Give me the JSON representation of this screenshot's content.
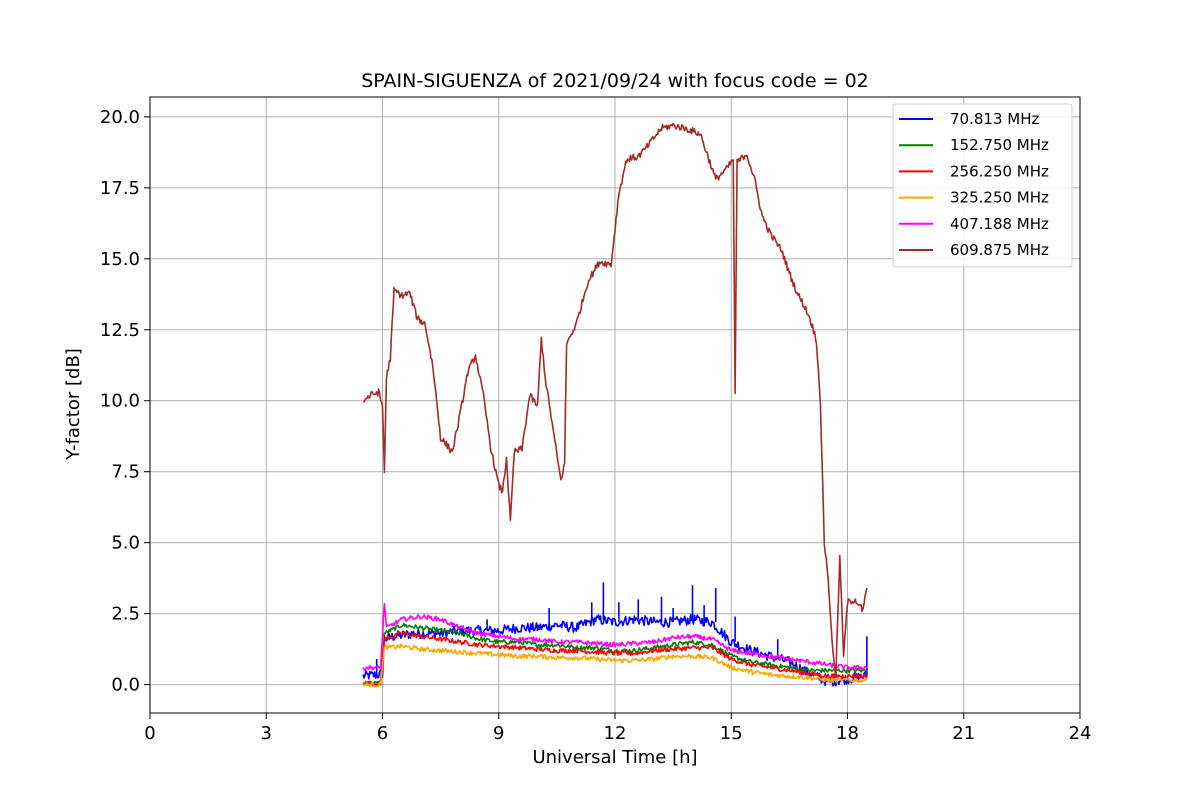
{
  "chart_data": {
    "type": "line",
    "title": "SPAIN-SIGUENZA of 2021/09/24 with focus code = 02",
    "xlabel": "Universal Time [h]",
    "ylabel": "Y-factor [dB]",
    "xlim": [
      0,
      24
    ],
    "ylim": [
      -1.0,
      20.7
    ],
    "xticks": [
      0,
      3,
      6,
      9,
      12,
      15,
      18,
      21,
      24
    ],
    "xtick_labels": [
      "0",
      "3",
      "6",
      "9",
      "12",
      "15",
      "18",
      "21",
      "24"
    ],
    "yticks": [
      0.0,
      2.5,
      5.0,
      7.5,
      10.0,
      12.5,
      15.0,
      17.5,
      20.0
    ],
    "ytick_labels": [
      "0.0",
      "2.5",
      "5.0",
      "7.5",
      "10.0",
      "12.5",
      "15.0",
      "17.5",
      "20.0"
    ],
    "grid": true,
    "legend_position": "top-right",
    "series": [
      {
        "name": " 70.813 MHz",
        "color": "#0000ff",
        "points": [
          [
            5.5,
            0.3
          ],
          [
            5.9,
            0.35
          ],
          [
            6.0,
            0.4
          ],
          [
            6.05,
            1.6
          ],
          [
            6.3,
            1.7
          ],
          [
            6.8,
            1.8
          ],
          [
            7.5,
            1.8
          ],
          [
            8.0,
            1.9
          ],
          [
            8.5,
            1.9
          ],
          [
            9.0,
            1.9
          ],
          [
            9.5,
            2.0
          ],
          [
            10.0,
            2.0
          ],
          [
            10.5,
            2.1
          ],
          [
            11.0,
            2.0
          ],
          [
            11.5,
            2.3
          ],
          [
            12.0,
            2.2
          ],
          [
            12.5,
            2.3
          ],
          [
            13.0,
            2.2
          ],
          [
            13.5,
            2.2
          ],
          [
            14.0,
            2.3
          ],
          [
            14.5,
            2.2
          ],
          [
            15.0,
            1.5
          ],
          [
            15.5,
            1.2
          ],
          [
            16.0,
            1.0
          ],
          [
            16.5,
            0.8
          ],
          [
            17.0,
            0.4
          ],
          [
            17.5,
            0.1
          ],
          [
            18.0,
            0.2
          ],
          [
            18.5,
            0.3
          ]
        ],
        "spikes": [
          [
            5.85,
            0.9
          ],
          [
            8.7,
            2.3
          ],
          [
            10.3,
            2.7
          ],
          [
            11.4,
            2.9
          ],
          [
            11.7,
            3.6
          ],
          [
            12.1,
            2.9
          ],
          [
            12.6,
            3.0
          ],
          [
            13.2,
            3.1
          ],
          [
            13.5,
            2.7
          ],
          [
            14.0,
            3.5
          ],
          [
            14.3,
            2.8
          ],
          [
            14.6,
            3.4
          ],
          [
            15.1,
            2.4
          ],
          [
            16.2,
            1.6
          ],
          [
            18.5,
            1.7
          ]
        ]
      },
      {
        "name": "152.750 MHz",
        "color": "#008000",
        "points": [
          [
            5.5,
            0.05
          ],
          [
            5.95,
            0.05
          ],
          [
            6.05,
            1.8
          ],
          [
            6.5,
            2.1
          ],
          [
            7.0,
            2.0
          ],
          [
            7.5,
            1.9
          ],
          [
            8.0,
            1.8
          ],
          [
            8.5,
            1.6
          ],
          [
            9.0,
            1.5
          ],
          [
            9.5,
            1.5
          ],
          [
            10.0,
            1.4
          ],
          [
            10.5,
            1.4
          ],
          [
            11.0,
            1.3
          ],
          [
            11.5,
            1.3
          ],
          [
            12.0,
            1.2
          ],
          [
            12.5,
            1.2
          ],
          [
            13.0,
            1.3
          ],
          [
            13.5,
            1.4
          ],
          [
            14.0,
            1.5
          ],
          [
            14.5,
            1.4
          ],
          [
            15.0,
            1.0
          ],
          [
            15.5,
            0.8
          ],
          [
            16.0,
            0.7
          ],
          [
            16.5,
            0.6
          ],
          [
            17.0,
            0.5
          ],
          [
            17.5,
            0.5
          ],
          [
            18.0,
            0.5
          ],
          [
            18.5,
            0.5
          ]
        ],
        "spikes": []
      },
      {
        "name": "256.250 MHz",
        "color": "#ff0000",
        "points": [
          [
            5.5,
            0.05
          ],
          [
            5.95,
            0.05
          ],
          [
            6.05,
            1.6
          ],
          [
            6.5,
            1.8
          ],
          [
            7.0,
            1.7
          ],
          [
            7.5,
            1.6
          ],
          [
            8.0,
            1.5
          ],
          [
            8.5,
            1.4
          ],
          [
            9.0,
            1.35
          ],
          [
            9.5,
            1.3
          ],
          [
            10.0,
            1.25
          ],
          [
            10.5,
            1.2
          ],
          [
            11.0,
            1.2
          ],
          [
            11.5,
            1.15
          ],
          [
            12.0,
            1.1
          ],
          [
            12.5,
            1.1
          ],
          [
            13.0,
            1.2
          ],
          [
            13.5,
            1.25
          ],
          [
            14.0,
            1.3
          ],
          [
            14.5,
            1.3
          ],
          [
            15.0,
            0.9
          ],
          [
            15.5,
            0.7
          ],
          [
            16.0,
            0.6
          ],
          [
            16.5,
            0.5
          ],
          [
            17.0,
            0.4
          ],
          [
            17.5,
            0.3
          ],
          [
            18.0,
            0.3
          ],
          [
            18.5,
            0.3
          ]
        ],
        "spikes": []
      },
      {
        "name": "325.250 MHz",
        "color": "#ffa500",
        "points": [
          [
            5.5,
            0.0
          ],
          [
            5.95,
            0.0
          ],
          [
            6.05,
            1.3
          ],
          [
            6.5,
            1.35
          ],
          [
            7.0,
            1.25
          ],
          [
            7.5,
            1.2
          ],
          [
            8.0,
            1.15
          ],
          [
            8.5,
            1.1
          ],
          [
            9.0,
            1.05
          ],
          [
            9.5,
            1.0
          ],
          [
            10.0,
            1.0
          ],
          [
            10.5,
            0.95
          ],
          [
            11.0,
            0.95
          ],
          [
            11.5,
            0.9
          ],
          [
            12.0,
            0.85
          ],
          [
            12.5,
            0.85
          ],
          [
            13.0,
            0.9
          ],
          [
            13.5,
            1.0
          ],
          [
            14.0,
            1.0
          ],
          [
            14.5,
            0.95
          ],
          [
            15.0,
            0.6
          ],
          [
            15.5,
            0.45
          ],
          [
            16.0,
            0.35
          ],
          [
            16.5,
            0.3
          ],
          [
            17.0,
            0.25
          ],
          [
            17.5,
            0.15
          ],
          [
            18.0,
            0.15
          ],
          [
            18.5,
            0.15
          ]
        ],
        "spikes": []
      },
      {
        "name": "407.188 MHz",
        "color": "#ff00ff",
        "points": [
          [
            5.5,
            0.6
          ],
          [
            5.95,
            0.6
          ],
          [
            6.05,
            2.9
          ],
          [
            6.1,
            2.0
          ],
          [
            6.5,
            2.3
          ],
          [
            7.0,
            2.4
          ],
          [
            7.5,
            2.3
          ],
          [
            8.0,
            2.0
          ],
          [
            8.5,
            1.8
          ],
          [
            9.0,
            1.7
          ],
          [
            9.5,
            1.6
          ],
          [
            10.0,
            1.6
          ],
          [
            10.5,
            1.5
          ],
          [
            11.0,
            1.5
          ],
          [
            11.5,
            1.45
          ],
          [
            12.0,
            1.4
          ],
          [
            12.5,
            1.45
          ],
          [
            13.0,
            1.5
          ],
          [
            13.5,
            1.65
          ],
          [
            14.0,
            1.7
          ],
          [
            14.5,
            1.6
          ],
          [
            15.0,
            1.2
          ],
          [
            15.5,
            1.1
          ],
          [
            16.0,
            1.0
          ],
          [
            16.5,
            0.9
          ],
          [
            17.0,
            0.8
          ],
          [
            17.5,
            0.7
          ],
          [
            18.0,
            0.6
          ],
          [
            18.5,
            0.6
          ]
        ],
        "spikes": []
      },
      {
        "name": "609.875 MHz",
        "color": "#a52a2a",
        "points": [
          [
            5.5,
            10.0
          ],
          [
            5.7,
            10.2
          ],
          [
            5.9,
            10.3
          ],
          [
            6.0,
            9.8
          ],
          [
            6.05,
            7.5
          ],
          [
            6.1,
            10.8
          ],
          [
            6.2,
            11.5
          ],
          [
            6.3,
            13.9
          ],
          [
            6.5,
            13.7
          ],
          [
            6.7,
            13.8
          ],
          [
            6.9,
            12.9
          ],
          [
            7.1,
            12.7
          ],
          [
            7.3,
            11.2
          ],
          [
            7.5,
            8.7
          ],
          [
            7.8,
            8.2
          ],
          [
            8.0,
            9.5
          ],
          [
            8.2,
            11.0
          ],
          [
            8.4,
            11.6
          ],
          [
            8.6,
            10.2
          ],
          [
            8.8,
            8.3
          ],
          [
            9.0,
            7.0
          ],
          [
            9.1,
            6.8
          ],
          [
            9.2,
            8.0
          ],
          [
            9.3,
            5.7
          ],
          [
            9.4,
            8.2
          ],
          [
            9.6,
            8.3
          ],
          [
            9.8,
            10.2
          ],
          [
            10.0,
            9.8
          ],
          [
            10.1,
            12.2
          ],
          [
            10.2,
            10.8
          ],
          [
            10.4,
            9.0
          ],
          [
            10.6,
            7.2
          ],
          [
            10.7,
            7.8
          ],
          [
            10.75,
            12.0
          ],
          [
            11.0,
            12.7
          ],
          [
            11.3,
            14.2
          ],
          [
            11.6,
            14.9
          ],
          [
            11.9,
            14.8
          ],
          [
            12.1,
            17.3
          ],
          [
            12.3,
            18.5
          ],
          [
            12.6,
            18.6
          ],
          [
            12.8,
            18.9
          ],
          [
            13.2,
            19.6
          ],
          [
            13.5,
            19.7
          ],
          [
            13.8,
            19.6
          ],
          [
            14.2,
            19.4
          ],
          [
            14.4,
            18.6
          ],
          [
            14.6,
            17.8
          ],
          [
            14.9,
            18.2
          ],
          [
            15.05,
            18.5
          ],
          [
            15.1,
            10.3
          ],
          [
            15.15,
            18.4
          ],
          [
            15.4,
            18.7
          ],
          [
            15.6,
            17.8
          ],
          [
            15.8,
            16.5
          ],
          [
            16.0,
            15.9
          ],
          [
            16.3,
            15.3
          ],
          [
            16.5,
            14.5
          ],
          [
            16.7,
            13.8
          ],
          [
            16.9,
            13.3
          ],
          [
            17.0,
            13.0
          ],
          [
            17.1,
            12.6
          ],
          [
            17.2,
            12.1
          ],
          [
            17.3,
            10.0
          ],
          [
            17.4,
            5.0
          ],
          [
            17.5,
            3.8
          ],
          [
            17.6,
            1.5
          ],
          [
            17.7,
            0.3
          ],
          [
            17.8,
            4.5
          ],
          [
            17.9,
            1.0
          ],
          [
            18.0,
            2.9
          ],
          [
            18.2,
            3.0
          ],
          [
            18.4,
            2.6
          ],
          [
            18.5,
            3.4
          ]
        ],
        "spikes": []
      }
    ]
  }
}
